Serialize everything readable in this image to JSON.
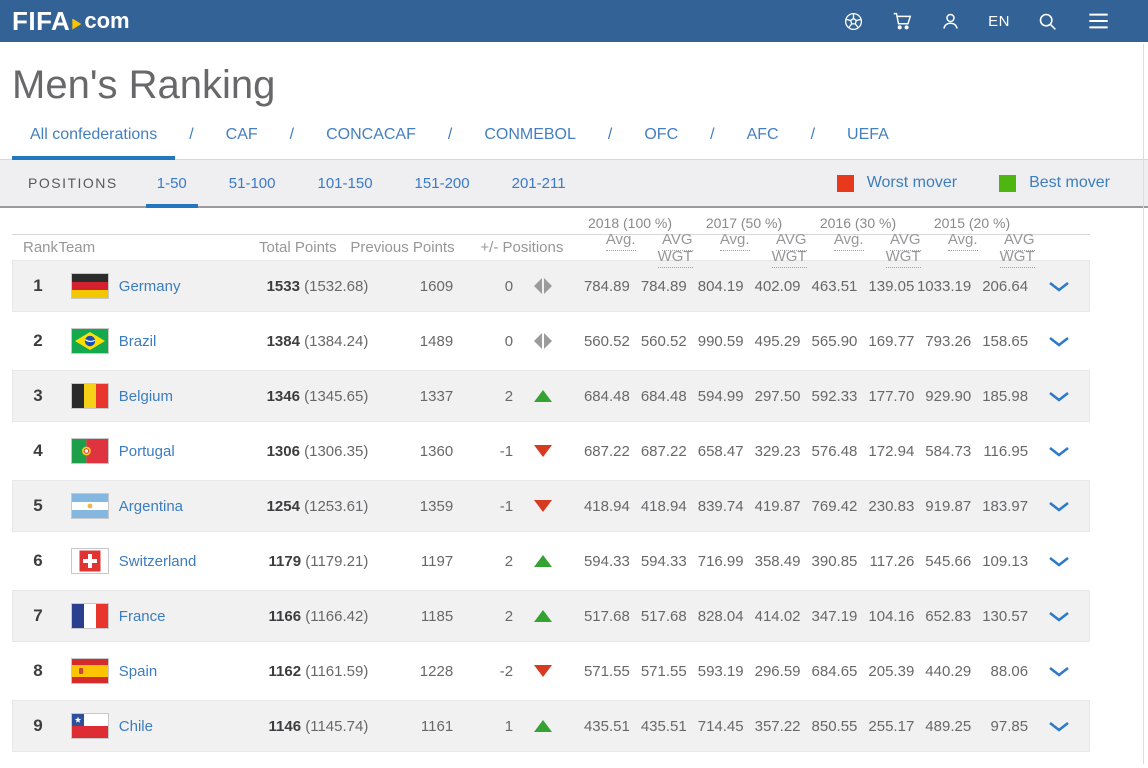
{
  "topbar": {
    "logo_fifa": "FIFA",
    "logo_com": "com",
    "language": "EN"
  },
  "page_title": "Men's Ranking",
  "confederation_tabs": {
    "separator": "/",
    "items": [
      {
        "label": "All confederations",
        "active": true
      },
      {
        "label": "CAF",
        "active": false
      },
      {
        "label": "CONCACAF",
        "active": false
      },
      {
        "label": "CONMEBOL",
        "active": false
      },
      {
        "label": "OFC",
        "active": false
      },
      {
        "label": "AFC",
        "active": false
      },
      {
        "label": "UEFA",
        "active": false
      }
    ]
  },
  "positions_bar": {
    "label": "POSITIONS",
    "tabs": [
      {
        "label": "1-50",
        "active": true
      },
      {
        "label": "51-100",
        "active": false
      },
      {
        "label": "101-150",
        "active": false
      },
      {
        "label": "151-200",
        "active": false
      },
      {
        "label": "201-211",
        "active": false
      }
    ],
    "legend": [
      {
        "label": "Worst mover",
        "color": "#e8391d"
      },
      {
        "label": "Best mover",
        "color": "#4fb611"
      }
    ]
  },
  "table": {
    "year_groups": [
      "2018 (100 %)",
      "2017 (50 %)",
      "2016 (30 %)",
      "2015 (20 %)"
    ],
    "columns": {
      "rank": "Rank",
      "team": "Team",
      "total": "Total Points",
      "previous": "Previous Points",
      "plus_minus": "+/- Positions"
    },
    "sub_columns": [
      "Avg.",
      "AVG WGT"
    ],
    "rows": [
      {
        "rank": "1",
        "team": "Germany",
        "flag": "germany",
        "total": "1533",
        "total_exact": "(1532.68)",
        "previous": "1609",
        "change": "0",
        "move": "none",
        "values": [
          "784.89",
          "784.89",
          "804.19",
          "402.09",
          "463.51",
          "139.05",
          "1033.19",
          "206.64"
        ]
      },
      {
        "rank": "2",
        "team": "Brazil",
        "flag": "brazil",
        "total": "1384",
        "total_exact": "(1384.24)",
        "previous": "1489",
        "change": "0",
        "move": "none",
        "values": [
          "560.52",
          "560.52",
          "990.59",
          "495.29",
          "565.90",
          "169.77",
          "793.26",
          "158.65"
        ]
      },
      {
        "rank": "3",
        "team": "Belgium",
        "flag": "belgium",
        "total": "1346",
        "total_exact": "(1345.65)",
        "previous": "1337",
        "change": "2",
        "move": "up",
        "values": [
          "684.48",
          "684.48",
          "594.99",
          "297.50",
          "592.33",
          "177.70",
          "929.90",
          "185.98"
        ]
      },
      {
        "rank": "4",
        "team": "Portugal",
        "flag": "portugal",
        "total": "1306",
        "total_exact": "(1306.35)",
        "previous": "1360",
        "change": "-1",
        "move": "down",
        "values": [
          "687.22",
          "687.22",
          "658.47",
          "329.23",
          "576.48",
          "172.94",
          "584.73",
          "116.95"
        ]
      },
      {
        "rank": "5",
        "team": "Argentina",
        "flag": "argentina",
        "total": "1254",
        "total_exact": "(1253.61)",
        "previous": "1359",
        "change": "-1",
        "move": "down",
        "values": [
          "418.94",
          "418.94",
          "839.74",
          "419.87",
          "769.42",
          "230.83",
          "919.87",
          "183.97"
        ]
      },
      {
        "rank": "6",
        "team": "Switzerland",
        "flag": "switzerland",
        "total": "1179",
        "total_exact": "(1179.21)",
        "previous": "1197",
        "change": "2",
        "move": "up",
        "values": [
          "594.33",
          "594.33",
          "716.99",
          "358.49",
          "390.85",
          "117.26",
          "545.66",
          "109.13"
        ]
      },
      {
        "rank": "7",
        "team": "France",
        "flag": "france",
        "total": "1166",
        "total_exact": "(1166.42)",
        "previous": "1185",
        "change": "2",
        "move": "up",
        "values": [
          "517.68",
          "517.68",
          "828.04",
          "414.02",
          "347.19",
          "104.16",
          "652.83",
          "130.57"
        ]
      },
      {
        "rank": "8",
        "team": "Spain",
        "flag": "spain",
        "total": "1162",
        "total_exact": "(1161.59)",
        "previous": "1228",
        "change": "-2",
        "move": "down",
        "values": [
          "571.55",
          "571.55",
          "593.19",
          "296.59",
          "684.65",
          "205.39",
          "440.29",
          "88.06"
        ]
      },
      {
        "rank": "9",
        "team": "Chile",
        "flag": "chile",
        "total": "1146",
        "total_exact": "(1145.74)",
        "previous": "1161",
        "change": "1",
        "move": "up",
        "values": [
          "435.51",
          "435.51",
          "714.45",
          "357.22",
          "850.55",
          "255.17",
          "489.25",
          "97.85"
        ]
      }
    ]
  },
  "colors": {
    "topbar_blue": "#336296",
    "accent_blue": "#2376c0",
    "link_blue": "#3d7ebd",
    "worst_red": "#e8391d",
    "best_green": "#4fb611",
    "arrow_up_green": "#35a233",
    "arrow_down_red": "#d63a21"
  }
}
